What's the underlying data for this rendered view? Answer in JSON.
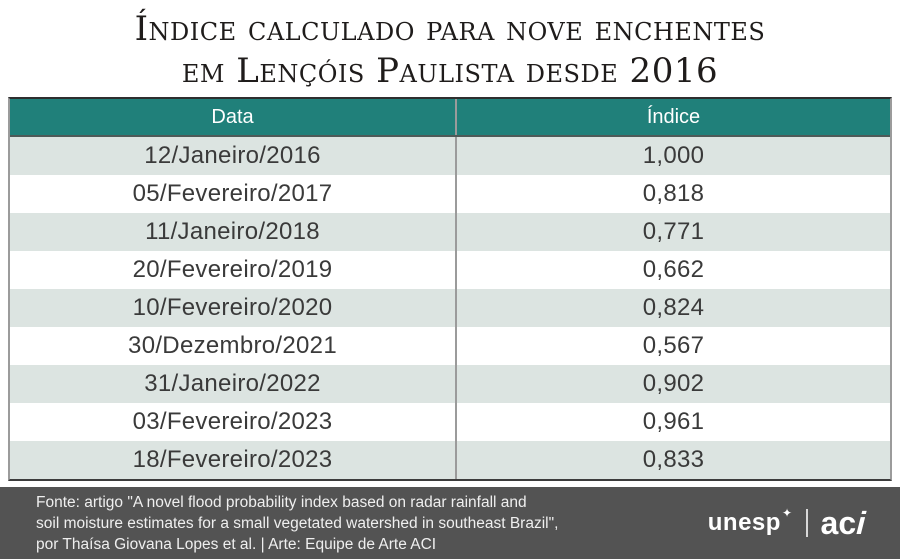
{
  "title": {
    "line1": "Índice calculado para nove enchentes",
    "line2": "em Lençóis Paulista desde 2016"
  },
  "table": {
    "headers": [
      "Data",
      "Índice"
    ],
    "rows": [
      {
        "date": "12/Janeiro/2016",
        "index": "1,000"
      },
      {
        "date": "05/Fevereiro/2017",
        "index": "0,818"
      },
      {
        "date": "11/Janeiro/2018",
        "index": "0,771"
      },
      {
        "date": "20/Fevereiro/2019",
        "index": "0,662"
      },
      {
        "date": "10/Fevereiro/2020",
        "index": "0,824"
      },
      {
        "date": "30/Dezembro/2021",
        "index": "0,567"
      },
      {
        "date": "31/Janeiro/2022",
        "index": "0,902"
      },
      {
        "date": "03/Fevereiro/2023",
        "index": "0,961"
      },
      {
        "date": "18/Fevereiro/2023",
        "index": "0,833"
      }
    ]
  },
  "footer": {
    "lines": "Fonte: artigo \"A novel flood probability index based on radar rainfall and\nsoil moisture estimates for a small vegetated watershed in southeast Brazil\",\npor Thaísa Giovana Lopes et al.  |  Arte: Equipe de Arte ACI",
    "logos": {
      "unesp": "unesp",
      "unesp_emblem": "✦",
      "aci_ac": "ac",
      "aci_i": "i"
    }
  },
  "theme": {
    "header_teal": "#20807a",
    "row_alt": "#dce4e1",
    "footer_bg": "#535353",
    "title_color": "#1f1c1b",
    "cell_color": "#3a3a3a",
    "border_gray": "#9b9b9b"
  },
  "chart_data": {
    "type": "table",
    "title": "Índice calculado para nove enchentes em Lençóis Paulista desde 2016",
    "columns": [
      "Data",
      "Índice"
    ],
    "rows": [
      [
        "12/Janeiro/2016",
        1.0
      ],
      [
        "05/Fevereiro/2017",
        0.818
      ],
      [
        "11/Janeiro/2018",
        0.771
      ],
      [
        "20/Fevereiro/2019",
        0.662
      ],
      [
        "10/Fevereiro/2020",
        0.824
      ],
      [
        "30/Dezembro/2021",
        0.567
      ],
      [
        "31/Janeiro/2022",
        0.902
      ],
      [
        "03/Fevereiro/2023",
        0.961
      ],
      [
        "18/Fevereiro/2023",
        0.833
      ]
    ],
    "notes": "Decimal comma formatting in display; alternating shaded rows; teal header band"
  }
}
